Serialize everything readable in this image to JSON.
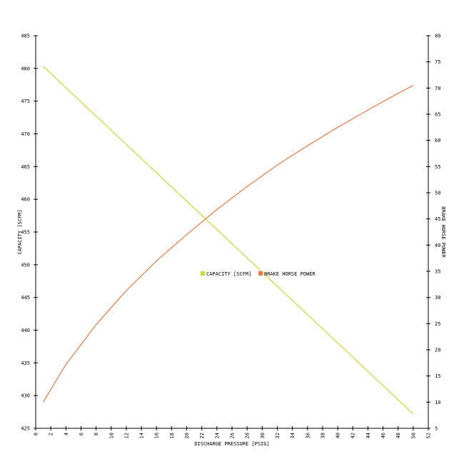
{
  "chart_data": {
    "type": "line",
    "title": "",
    "xlabel": "DISCHARGE PRESSURE [PSIG]",
    "ylabel_left": "CAPACITY [SCFM]",
    "ylabel_right": "BRAKE HORSE POWER",
    "xlim": [
      0,
      52
    ],
    "ylim_left": [
      425,
      485
    ],
    "ylim_right": [
      5,
      80
    ],
    "x_ticks": [
      0,
      2,
      4,
      6,
      8,
      10,
      12,
      14,
      16,
      18,
      20,
      22,
      24,
      26,
      28,
      30,
      32,
      34,
      36,
      38,
      40,
      42,
      44,
      46,
      48,
      50,
      52
    ],
    "y_ticks_left": [
      425,
      430,
      435,
      440,
      445,
      450,
      455,
      460,
      465,
      470,
      475,
      480,
      485
    ],
    "y_ticks_right": [
      5,
      10,
      15,
      20,
      25,
      30,
      35,
      40,
      45,
      50,
      55,
      60,
      65,
      70,
      75,
      80
    ],
    "grid": false,
    "legend_position": "center",
    "series": [
      {
        "name": "CAPACITY [SCFM]",
        "axis": "left",
        "color": "#c8dc32",
        "x": [
          1,
          50
        ],
        "y": [
          480.3,
          427.2
        ]
      },
      {
        "name": "BRAKE HORSE POWER",
        "axis": "right",
        "color": "#f07846",
        "x": [
          1,
          4,
          8,
          12,
          16,
          20,
          24,
          28,
          32,
          36,
          40,
          44,
          48,
          50
        ],
        "y": [
          10.0,
          17.2,
          24.8,
          31.3,
          37.0,
          42.0,
          46.8,
          51.2,
          55.3,
          59.0,
          62.5,
          65.8,
          69.0,
          70.5
        ]
      }
    ]
  }
}
